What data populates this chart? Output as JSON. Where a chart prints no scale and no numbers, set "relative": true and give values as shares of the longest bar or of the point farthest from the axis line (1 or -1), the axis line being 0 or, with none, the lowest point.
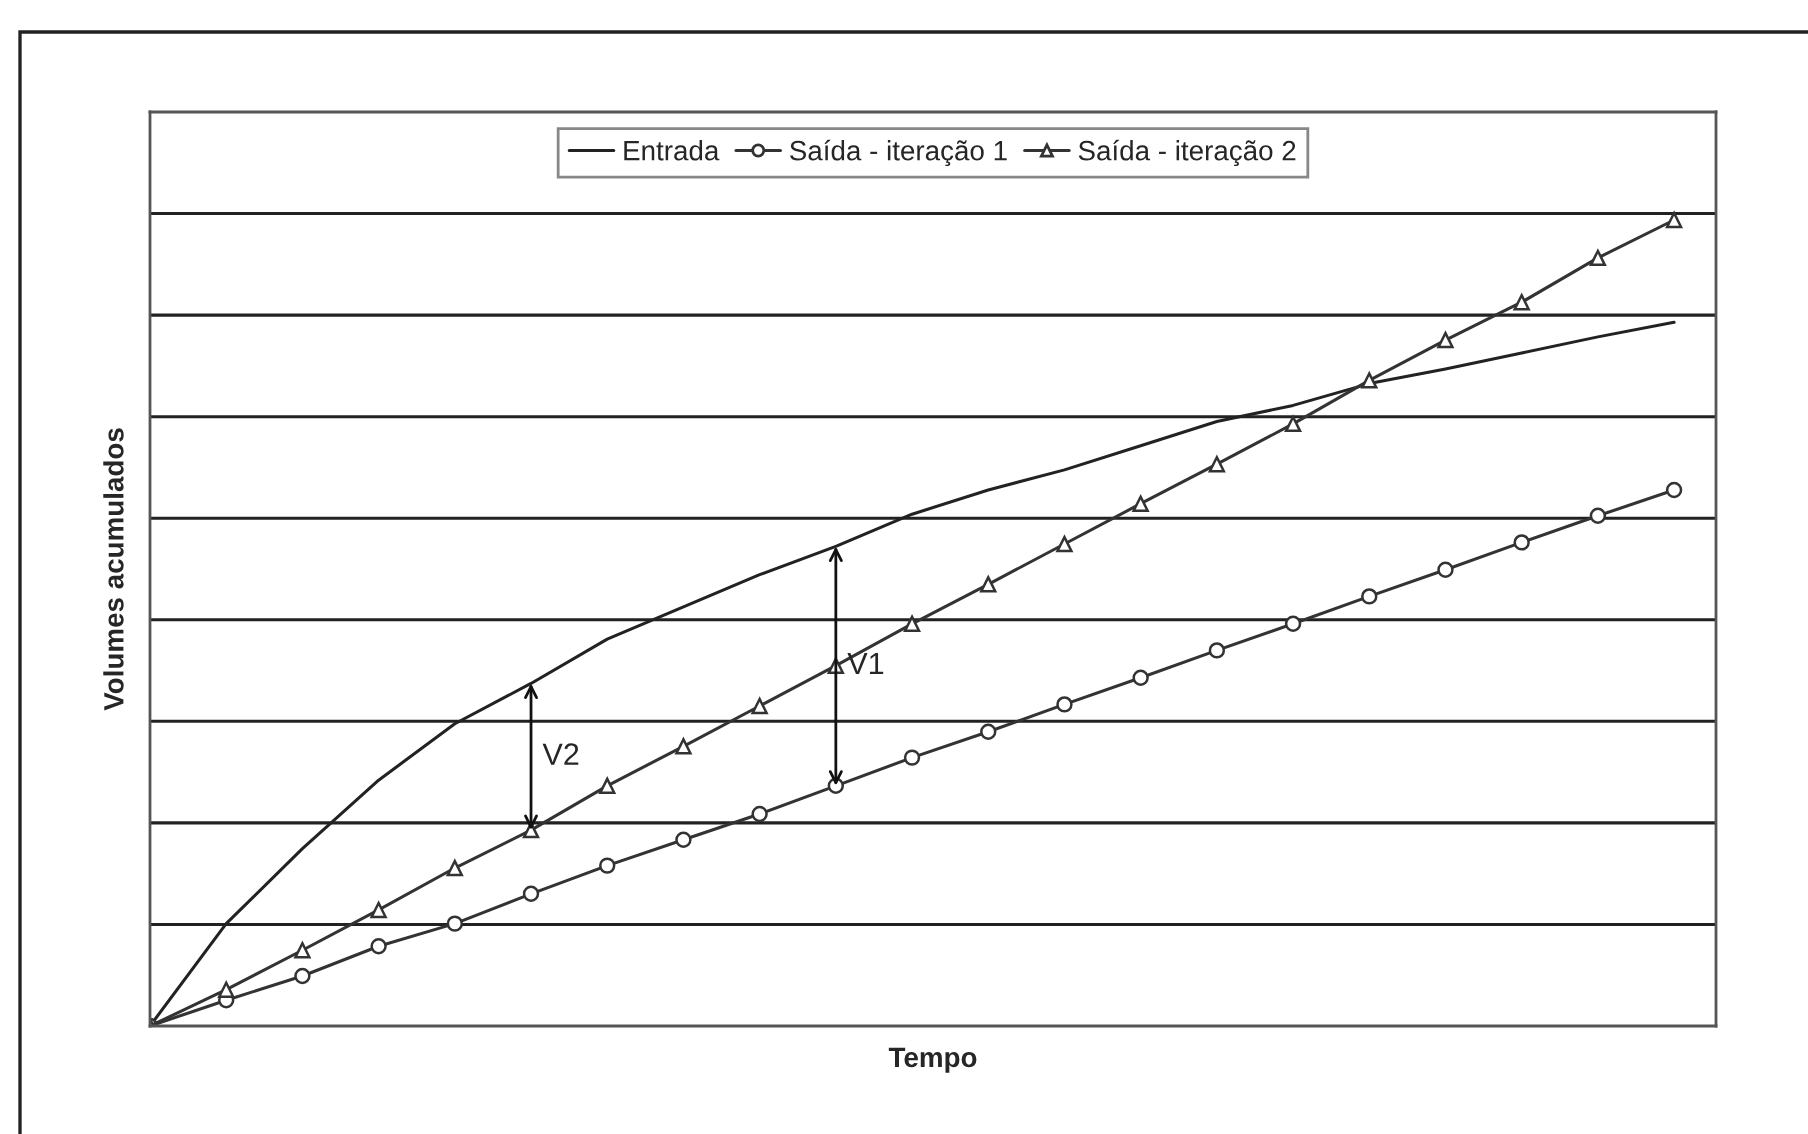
{
  "chart_data": {
    "type": "line",
    "relative": true,
    "xlabel": "Tempo",
    "ylabel": "Volumes acumulados",
    "categories": [
      null,
      null,
      null,
      null,
      null,
      null,
      null,
      null,
      null,
      null,
      null,
      null,
      null,
      null,
      null,
      null,
      null,
      null,
      null,
      null,
      null
    ],
    "series": [
      {
        "name": "Entrada",
        "color": "#222222",
        "marker": "none",
        "values": [
          0,
          0.127,
          0.22,
          0.305,
          0.375,
          0.425,
          0.48,
          0.52,
          0.56,
          0.595,
          0.635,
          0.665,
          0.69,
          0.72,
          0.75,
          0.77,
          0.797,
          0.815,
          0.835,
          0.855,
          0.873
        ]
      },
      {
        "name": "Saída - iteração 1",
        "color": "#333333",
        "marker": "circle",
        "values": [
          0,
          0.032,
          0.062,
          0.099,
          0.127,
          0.164,
          0.199,
          0.231,
          0.263,
          0.298,
          0.333,
          0.365,
          0.399,
          0.432,
          0.466,
          0.499,
          0.533,
          0.566,
          0.6,
          0.633,
          0.665
        ]
      },
      {
        "name": "Saída - iteração 2",
        "color": "#333333",
        "marker": "triangle",
        "values": [
          0,
          0.045,
          0.094,
          0.144,
          0.196,
          0.243,
          0.298,
          0.347,
          0.397,
          0.447,
          0.499,
          0.548,
          0.598,
          0.648,
          0.697,
          0.747,
          0.801,
          0.851,
          0.898,
          0.953,
          1
        ]
      }
    ],
    "annotations": [
      "V2",
      "V1"
    ],
    "grid": "y",
    "legend": "top",
    "line_style": "solid"
  }
}
